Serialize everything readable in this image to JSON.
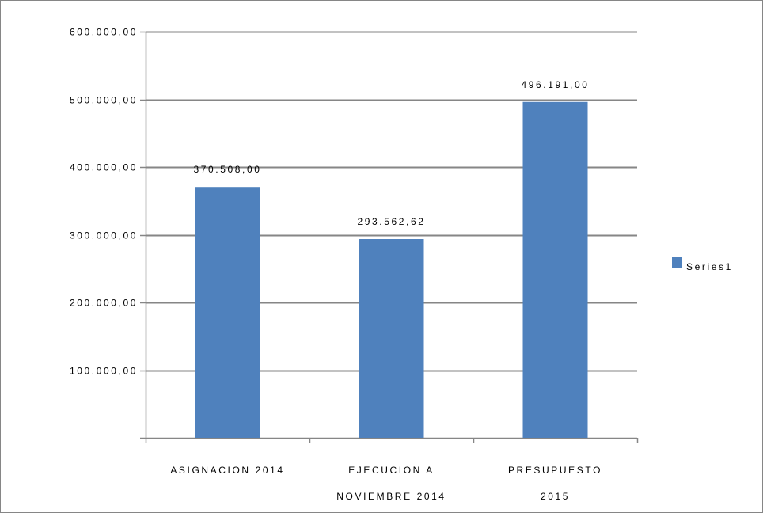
{
  "chart_data": {
    "type": "bar",
    "categories": [
      [
        "ASIGNACION 2014"
      ],
      [
        "EJECUCION A",
        "NOVIEMBRE 2014"
      ],
      [
        "PRESUPUESTO",
        "2015"
      ]
    ],
    "series": [
      {
        "name": "Series1",
        "values": [
          370508.0,
          293562.62,
          496191.0
        ],
        "data_labels": [
          "370.508,00",
          "293.562,62",
          "496.191,00"
        ]
      }
    ],
    "y_ticks": [
      {
        "value": 0,
        "label": "-"
      },
      {
        "value": 100000,
        "label": "100.000,00"
      },
      {
        "value": 200000,
        "label": "200.000,00"
      },
      {
        "value": 300000,
        "label": "300.000,00"
      },
      {
        "value": 400000,
        "label": "400.000,00"
      },
      {
        "value": 500000,
        "label": "500.000,00"
      },
      {
        "value": 600000,
        "label": "600.000,00"
      }
    ],
    "ylim": [
      0,
      600000
    ],
    "title": "",
    "xlabel": "",
    "ylabel": "",
    "grid": true,
    "legend": "right",
    "colors": {
      "bar": "#4F81BD",
      "grid": "#868686",
      "axis": "#868686"
    }
  }
}
